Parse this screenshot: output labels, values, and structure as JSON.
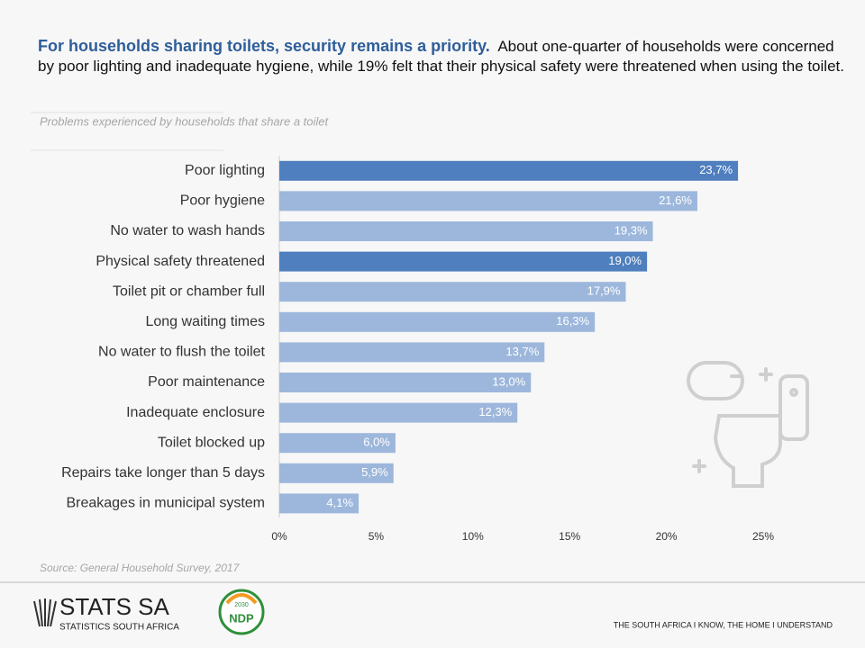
{
  "header": {
    "headline": "For households sharing toilets, security remains a priority.",
    "description": "About one-quarter of households were concerned by poor lighting and inadequate hygiene,  while 19% felt that their physical safety were threatened when using the toilet."
  },
  "chart_data": {
    "type": "bar",
    "orientation": "horizontal",
    "subtitle": "Problems experienced by households that share a toilet",
    "categories": [
      "Poor lighting",
      "Poor hygiene",
      "No water to wash hands",
      "Physical safety threatened",
      "Toilet pit or chamber full",
      "Long waiting times",
      "No water to flush the toilet",
      "Poor maintenance",
      "Inadequate enclosure",
      "Toilet blocked up",
      "Repairs take longer than 5 days",
      "Breakages in municipal system"
    ],
    "values": [
      23.7,
      21.6,
      19.3,
      19.0,
      17.9,
      16.3,
      13.7,
      13.0,
      12.3,
      6.0,
      5.9,
      4.1
    ],
    "value_labels": [
      "23,7%",
      "21,6%",
      "19,3%",
      "19,0%",
      "17,9%",
      "16,3%",
      "13,7%",
      "13,0%",
      "12,3%",
      "6,0%",
      "5,9%",
      "4,1%"
    ],
    "colors": [
      "#4f7fbe",
      "#9db7dc",
      "#9db7dc",
      "#4f7fbe",
      "#9db7dc",
      "#9db7dc",
      "#9db7dc",
      "#9db7dc",
      "#9db7dc",
      "#9db7dc",
      "#9db7dc",
      "#9db7dc"
    ],
    "xlim": [
      0,
      25
    ],
    "xticks": [
      {
        "value": 0,
        "label": "0%"
      },
      {
        "value": 5,
        "label": "5%"
      },
      {
        "value": 10,
        "label": "10%"
      },
      {
        "value": 15,
        "label": "15%"
      },
      {
        "value": 20,
        "label": "20%"
      },
      {
        "value": 25,
        "label": "25%"
      }
    ],
    "grid": false,
    "source": "Source: General Household Survey, 2017"
  },
  "footer": {
    "logo": "STATS SA",
    "logo_subtitle": "STATISTICS SOUTH AFRICA",
    "ndp": "NDP",
    "ndp_year": "2030",
    "slogan": "THE SOUTH AFRICA I KNOW, THE HOME I UNDERSTAND"
  }
}
